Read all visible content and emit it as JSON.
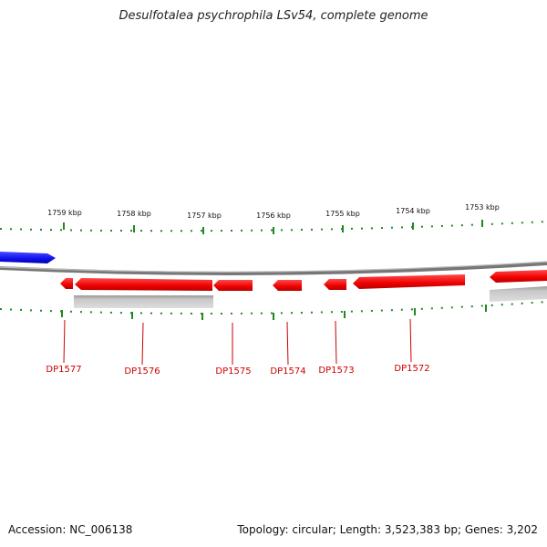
{
  "title": "Desulfotalea psychrophila LSv54, complete genome",
  "footer": {
    "accession": "Accession: NC_006138",
    "topology": "Topology: circular; Length: 3,523,383 bp; Genes: 3,202"
  },
  "ticks": [
    "1759 kbp",
    "1758 kbp",
    "1757 kbp",
    "1756 kbp",
    "1755 kbp",
    "1754 kbp",
    "1753 kbp"
  ],
  "genes": [
    "DP1577",
    "DP1576",
    "DP1575",
    "DP1574",
    "DP1573",
    "DP1572"
  ],
  "colors": {
    "gene_forward": "#1010ee",
    "gene_reverse": "#ee0000",
    "rna_feature": "#bbbbbb",
    "backbone": "#888888",
    "tick": "#228822",
    "label": "#cc0000"
  }
}
